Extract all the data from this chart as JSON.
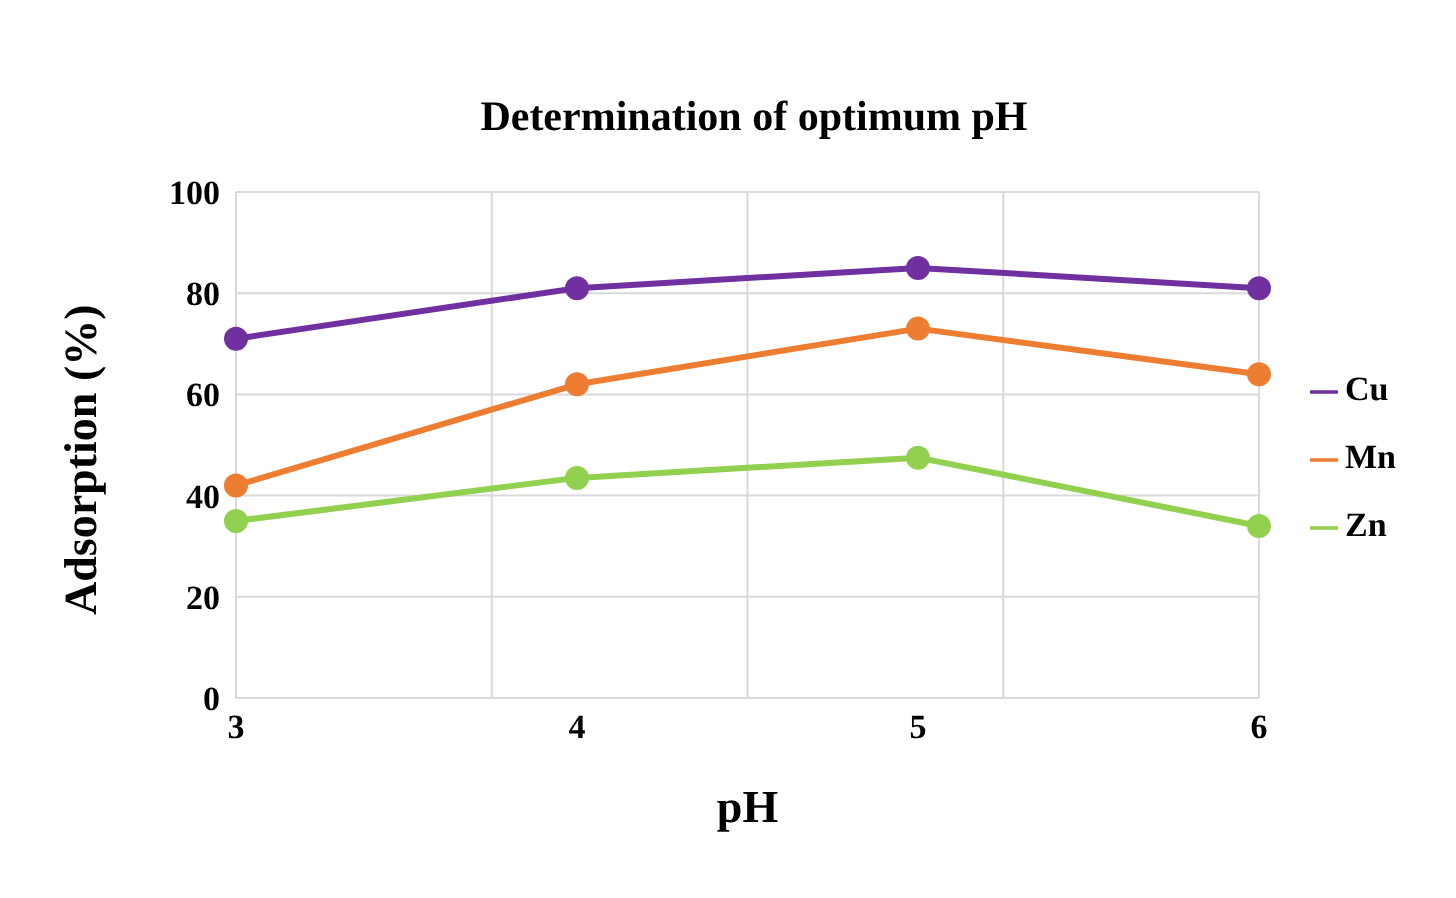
{
  "chart_data": {
    "type": "line",
    "title": "Determination of optimum pH",
    "xlabel": "pH",
    "ylabel": "Adsorption (%)",
    "categories": [
      "3",
      "4",
      "5",
      "6"
    ],
    "series": [
      {
        "name": "Mn",
        "color": "#ed7d31",
        "values": [
          42,
          62,
          73,
          64
        ]
      },
      {
        "name": "Cu",
        "color": "#7030a0",
        "values": [
          71,
          81,
          85,
          81
        ]
      },
      {
        "name": "Zn",
        "color": "#92d050",
        "values": [
          35,
          43.5,
          47.5,
          34
        ]
      }
    ],
    "ylim": [
      0,
      100
    ],
    "yticks": [
      0,
      20,
      40,
      60,
      80,
      100
    ],
    "grid": true,
    "legend": "right",
    "marker": "circle",
    "line_style": "solid"
  }
}
